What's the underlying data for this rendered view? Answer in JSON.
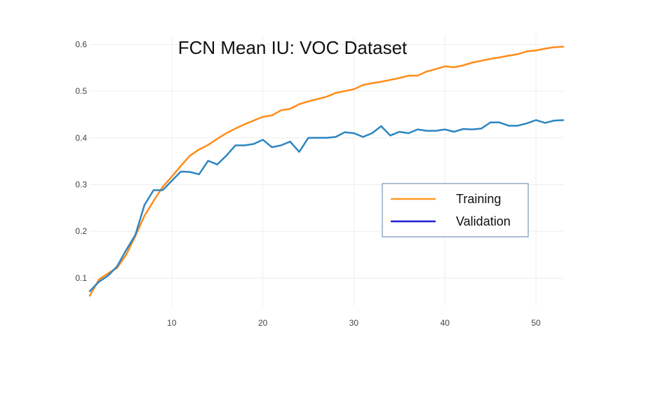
{
  "chart_data": {
    "type": "line",
    "title": "FCN Mean IU: VOC Dataset",
    "xlabel": "",
    "ylabel": "",
    "xlim": [
      1,
      53
    ],
    "ylim": [
      0.04,
      0.62
    ],
    "x_ticks": [
      10,
      20,
      30,
      40,
      50
    ],
    "y_ticks": [
      0.1,
      0.2,
      0.3,
      0.4,
      0.5,
      0.6
    ],
    "x_tick_labels": [
      "10",
      "20",
      "30",
      "40",
      "50"
    ],
    "y_tick_labels": [
      "0.1",
      "0.2",
      "0.3",
      "0.4",
      "0.5",
      "0.6"
    ],
    "grid": true,
    "legend_position": "center-right",
    "legend_entries": [
      {
        "label": "Training",
        "color": "#ff9922"
      },
      {
        "label": "Validation",
        "color": "#1f1fd4"
      }
    ],
    "series": [
      {
        "name": "Training",
        "color": "#ff8c1a",
        "x": [
          1,
          2,
          3,
          4,
          5,
          6,
          7,
          8,
          9,
          10,
          11,
          12,
          13,
          14,
          15,
          16,
          17,
          18,
          19,
          20,
          21,
          22,
          23,
          24,
          25,
          26,
          27,
          28,
          29,
          30,
          31,
          32,
          33,
          34,
          35,
          36,
          37,
          38,
          39,
          40,
          41,
          42,
          43,
          44,
          45,
          46,
          47,
          48,
          49,
          50,
          51,
          52,
          53
        ],
        "values": [
          0.062,
          0.097,
          0.11,
          0.122,
          0.15,
          0.19,
          0.233,
          0.265,
          0.295,
          0.317,
          0.34,
          0.362,
          0.375,
          0.385,
          0.398,
          0.41,
          0.42,
          0.429,
          0.437,
          0.445,
          0.448,
          0.459,
          0.462,
          0.472,
          0.478,
          0.483,
          0.488,
          0.496,
          0.5,
          0.504,
          0.513,
          0.517,
          0.52,
          0.524,
          0.528,
          0.533,
          0.533,
          0.542,
          0.547,
          0.553,
          0.551,
          0.555,
          0.561,
          0.565,
          0.569,
          0.572,
          0.576,
          0.579,
          0.585,
          0.587,
          0.591,
          0.594,
          0.595
        ]
      },
      {
        "name": "Validation",
        "color": "#2e86c1",
        "x": [
          1,
          2,
          3,
          4,
          5,
          6,
          7,
          8,
          9,
          10,
          11,
          12,
          13,
          14,
          15,
          16,
          17,
          18,
          19,
          20,
          21,
          22,
          23,
          24,
          25,
          26,
          27,
          28,
          29,
          30,
          31,
          32,
          33,
          34,
          35,
          36,
          37,
          38,
          39,
          40,
          41,
          42,
          43,
          44,
          45,
          46,
          47,
          48,
          49,
          50,
          51,
          52,
          53
        ],
        "values": [
          0.072,
          0.092,
          0.105,
          0.125,
          0.16,
          0.192,
          0.256,
          0.288,
          0.288,
          0.308,
          0.328,
          0.327,
          0.322,
          0.351,
          0.343,
          0.362,
          0.384,
          0.384,
          0.387,
          0.396,
          0.38,
          0.384,
          0.392,
          0.37,
          0.4,
          0.4,
          0.4,
          0.402,
          0.412,
          0.41,
          0.402,
          0.41,
          0.425,
          0.405,
          0.413,
          0.41,
          0.418,
          0.415,
          0.415,
          0.418,
          0.413,
          0.419,
          0.418,
          0.42,
          0.433,
          0.433,
          0.426,
          0.426,
          0.431,
          0.438,
          0.432,
          0.437,
          0.438
        ]
      }
    ]
  }
}
